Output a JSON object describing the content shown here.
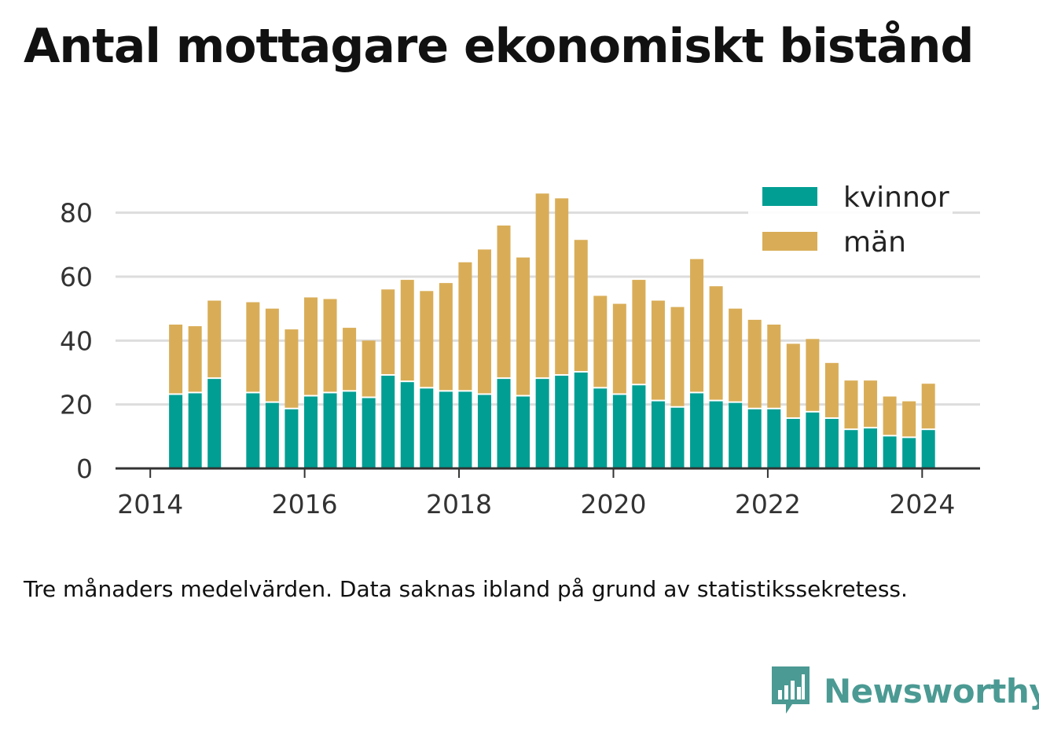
{
  "title": "Antal mottagare ekonomiskt bistånd",
  "footnote": "Tre månaders medelvärden. Data saknas ibland på grund av statistikssekretess.",
  "brand": {
    "name": "Newsworthy",
    "icon": "newsworthy-logo-icon"
  },
  "colors": {
    "kvinnor": "#009e93",
    "man": "#d9ad57",
    "grid": "#dddddd",
    "axis": "#333333"
  },
  "chart_data": {
    "type": "bar",
    "stacked": true,
    "title": "Antal mottagare ekonomiskt bistånd",
    "xlabel": "",
    "ylabel": "",
    "ylim": [
      0,
      90
    ],
    "xlim": [
      2013.55,
      2024.75
    ],
    "yticks": [
      0,
      20,
      40,
      60,
      80
    ],
    "xticks": [
      2014,
      2016,
      2018,
      2020,
      2022,
      2024
    ],
    "xtick_labels": [
      "2014",
      "2016",
      "2018",
      "2020",
      "2022",
      "2024"
    ],
    "grid": true,
    "legend_position": "top-right",
    "x": [
      2014.33,
      2014.58,
      2014.83,
      2015.33,
      2015.58,
      2015.83,
      2016.08,
      2016.33,
      2016.58,
      2016.83,
      2017.08,
      2017.33,
      2017.58,
      2017.83,
      2018.08,
      2018.33,
      2018.58,
      2018.83,
      2019.08,
      2019.33,
      2019.58,
      2019.83,
      2020.08,
      2020.33,
      2020.58,
      2020.83,
      2021.08,
      2021.33,
      2021.58,
      2021.83,
      2022.08,
      2022.33,
      2022.58,
      2022.83,
      2023.08,
      2023.33,
      2023.58,
      2023.83,
      2024.08
    ],
    "series": [
      {
        "name": "kvinnor",
        "values": [
          23,
          23.5,
          28,
          23.5,
          20.5,
          18.5,
          22.5,
          23.5,
          24,
          22,
          29,
          27,
          25,
          24,
          24,
          23,
          28,
          22.5,
          28,
          29,
          30,
          25,
          23,
          26,
          21,
          19,
          23.5,
          21,
          20.5,
          18.5,
          18.5,
          15.5,
          17.5,
          15.5,
          12,
          12.5,
          10,
          9.5,
          12
        ]
      },
      {
        "name": "män",
        "values": [
          22,
          21,
          24.5,
          28.5,
          29.5,
          25,
          31,
          29.5,
          20,
          18,
          27,
          32,
          30.5,
          34,
          40.5,
          45.5,
          48,
          43.5,
          58,
          55.5,
          41.5,
          29,
          28.5,
          33,
          31.5,
          31.5,
          42,
          36,
          29.5,
          28,
          26.5,
          23.5,
          23,
          17.5,
          15.5,
          15,
          12.5,
          11.5,
          14.5
        ]
      }
    ]
  }
}
